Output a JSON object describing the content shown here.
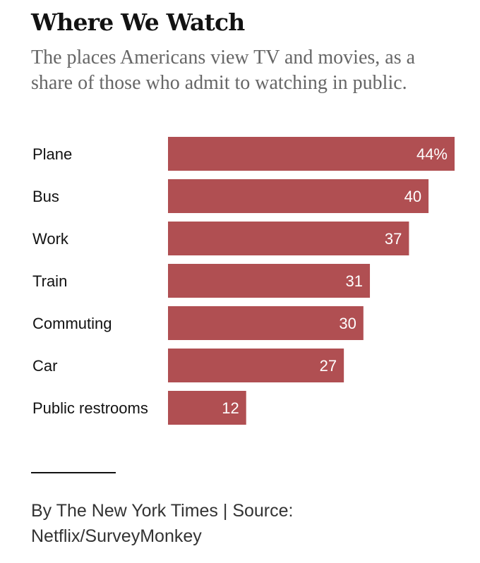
{
  "header": {
    "title": "Where We Watch",
    "subtitle": "The places Americans view TV and movies, as a share of those who admit to watching in public."
  },
  "chart_data": {
    "type": "bar",
    "orientation": "horizontal",
    "categories": [
      "Plane",
      "Bus",
      "Work",
      "Train",
      "Commuting",
      "Car",
      "Public restrooms"
    ],
    "values": [
      44,
      40,
      37,
      31,
      30,
      27,
      12
    ],
    "value_labels": [
      "44%",
      "40",
      "37",
      "31",
      "30",
      "27",
      "12"
    ],
    "unit": "%",
    "xlim": [
      0,
      44
    ],
    "title": "Where We Watch",
    "xlabel": "",
    "ylabel": "",
    "grid": false,
    "legend": "none",
    "bar_color": "#b04f52"
  },
  "footer": {
    "credit": "By The New York Times | Source: Netflix/SurveyMonkey"
  }
}
